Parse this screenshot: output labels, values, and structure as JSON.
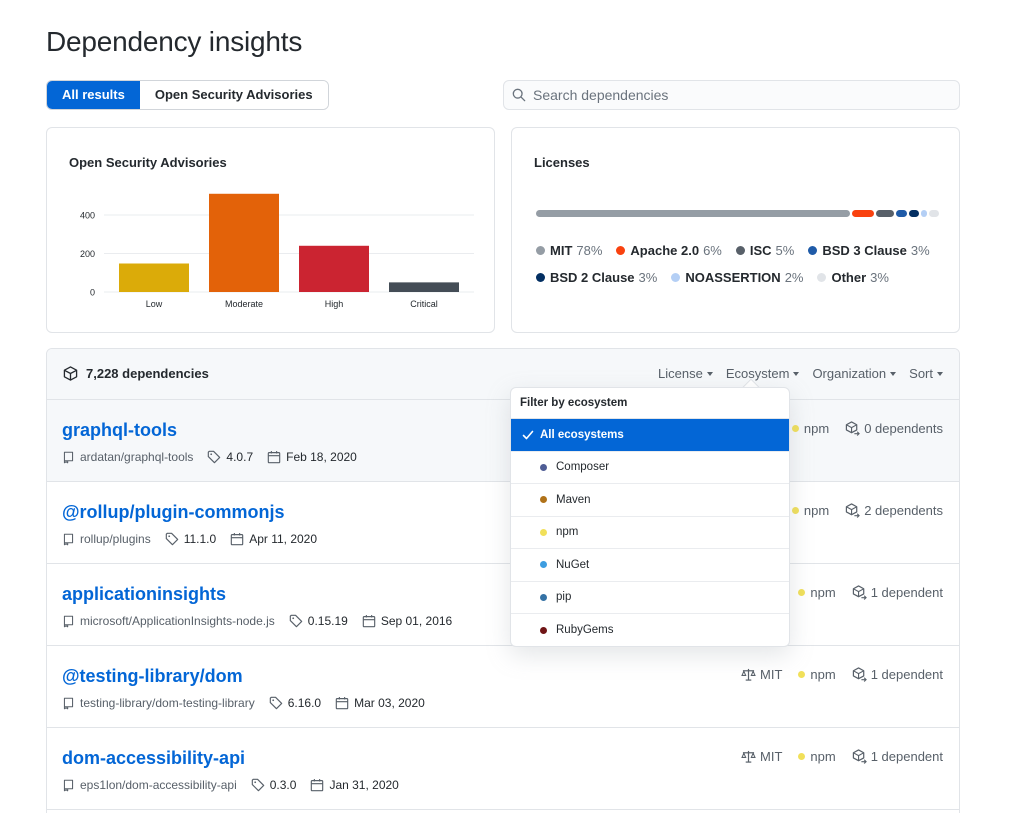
{
  "page": {
    "title": "Dependency insights"
  },
  "tabs": [
    {
      "label": "All results",
      "active": true
    },
    {
      "label": "Open Security Advisories",
      "active": false
    }
  ],
  "search": {
    "placeholder": "Search dependencies",
    "value": ""
  },
  "advisories": {
    "title": "Open Security Advisories",
    "chart_data": {
      "type": "bar",
      "categories": [
        "Low",
        "Moderate",
        "High",
        "Critical"
      ],
      "values": [
        148,
        510,
        240,
        50
      ],
      "colors": [
        "#dbab09",
        "#e36209",
        "#cb2431",
        "#444d56"
      ],
      "ylim": [
        0,
        540
      ],
      "yticks": [
        0,
        200,
        400
      ],
      "grid": true
    }
  },
  "licenses": {
    "title": "Licenses",
    "items": [
      {
        "name": "MIT",
        "pct": "78%",
        "value": 78,
        "color": "#959da5"
      },
      {
        "name": "Apache 2.0",
        "pct": "6%",
        "value": 6,
        "color": "#f9420f"
      },
      {
        "name": "ISC",
        "pct": "5%",
        "value": 5,
        "color": "#586069"
      },
      {
        "name": "BSD 3 Clause",
        "pct": "3%",
        "value": 3,
        "color": "#1f5ba8"
      },
      {
        "name": "BSD 2 Clause",
        "pct": "3%",
        "value": 3,
        "color": "#032f62"
      },
      {
        "name": "NOASSERTION",
        "pct": "2%",
        "value": 2,
        "color": "#b4cff5"
      },
      {
        "name": "Other",
        "pct": "3%",
        "value": 3,
        "color": "#e1e4e8"
      }
    ]
  },
  "list": {
    "count_label": "7,228 dependencies",
    "filters": [
      "License",
      "Ecosystem",
      "Organization",
      "Sort"
    ],
    "rows": [
      {
        "name": "graphql-tools",
        "repo": "ardatan/graphql-tools",
        "version": "4.0.7",
        "date": "Feb 18, 2020",
        "license": "",
        "ecosystem": "npm",
        "dependents": "0 dependents"
      },
      {
        "name": "@rollup/plugin-commonjs",
        "repo": "rollup/plugins",
        "version": "11.1.0",
        "date": "Apr 11, 2020",
        "license": "",
        "ecosystem": "npm",
        "dependents": "2 dependents"
      },
      {
        "name": "applicationinsights",
        "repo": "microsoft/ApplicationInsights-node.js",
        "version": "0.15.19",
        "date": "Sep 01, 2016",
        "license": "",
        "ecosystem": "npm",
        "dependents": "1 dependent"
      },
      {
        "name": "@testing-library/dom",
        "repo": "testing-library/dom-testing-library",
        "version": "6.16.0",
        "date": "Mar 03, 2020",
        "license": "MIT",
        "ecosystem": "npm",
        "dependents": "1 dependent"
      },
      {
        "name": "dom-accessibility-api",
        "repo": "eps1lon/dom-accessibility-api",
        "version": "0.3.0",
        "date": "Jan 31, 2020",
        "license": "MIT",
        "ecosystem": "npm",
        "dependents": "1 dependent"
      }
    ]
  },
  "dropdown": {
    "title": "Filter by ecosystem",
    "items": [
      {
        "label": "All ecosystems",
        "selected": true,
        "color": ""
      },
      {
        "label": "Composer",
        "selected": false,
        "color": "#4f5d95"
      },
      {
        "label": "Maven",
        "selected": false,
        "color": "#b07219"
      },
      {
        "label": "npm",
        "selected": false,
        "color": "#f1e05a"
      },
      {
        "label": "NuGet",
        "selected": false,
        "color": "#3d9de0"
      },
      {
        "label": "pip",
        "selected": false,
        "color": "#3572a5"
      },
      {
        "label": "RubyGems",
        "selected": false,
        "color": "#701516"
      }
    ]
  }
}
